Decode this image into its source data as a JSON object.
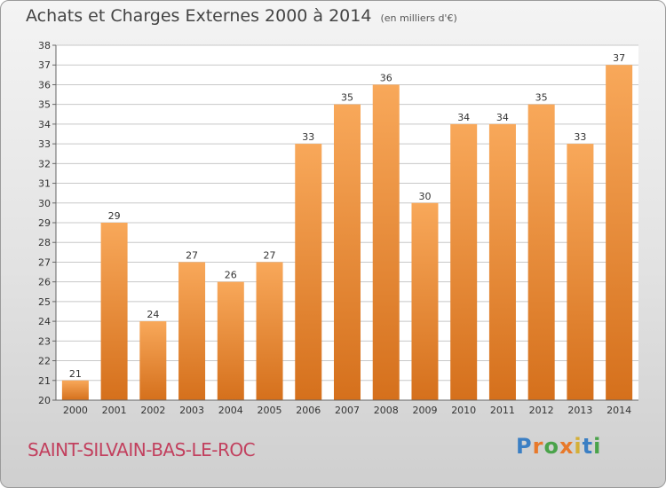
{
  "header": {
    "title": "Achats et Charges Externes 2000 à 2014",
    "subtitle": "(en milliers d'€)"
  },
  "footer": {
    "commune": "SAINT-SILVAIN-BAS-LE-ROC",
    "logo_text": "Proxiti",
    "logo_colors": [
      "#3b7fc4",
      "#e8792a",
      "#4aa34a",
      "#e8792a",
      "#d4af37",
      "#3b7fc4",
      "#4aa34a"
    ]
  },
  "colors": {
    "bar_light": "#f8a85a",
    "bar_dark": "#d5701c",
    "grid": "#c8c8c8",
    "axis_text": "#333333"
  },
  "chart_data": {
    "type": "bar",
    "title": "Achats et Charges Externes 2000 à 2014",
    "subtitle": "(en milliers d'€)",
    "categories": [
      "2000",
      "2001",
      "2002",
      "2003",
      "2004",
      "2005",
      "2006",
      "2007",
      "2008",
      "2009",
      "2010",
      "2011",
      "2012",
      "2013",
      "2014"
    ],
    "values": [
      21,
      29,
      24,
      27,
      26,
      27,
      33,
      35,
      36,
      30,
      34,
      34,
      35,
      33,
      37
    ],
    "ylim": [
      20,
      38
    ],
    "yticks": [
      20,
      21,
      22,
      23,
      24,
      25,
      26,
      27,
      28,
      29,
      30,
      31,
      32,
      33,
      34,
      35,
      36,
      37,
      38
    ],
    "grid": true,
    "xlabel": "",
    "ylabel": ""
  }
}
